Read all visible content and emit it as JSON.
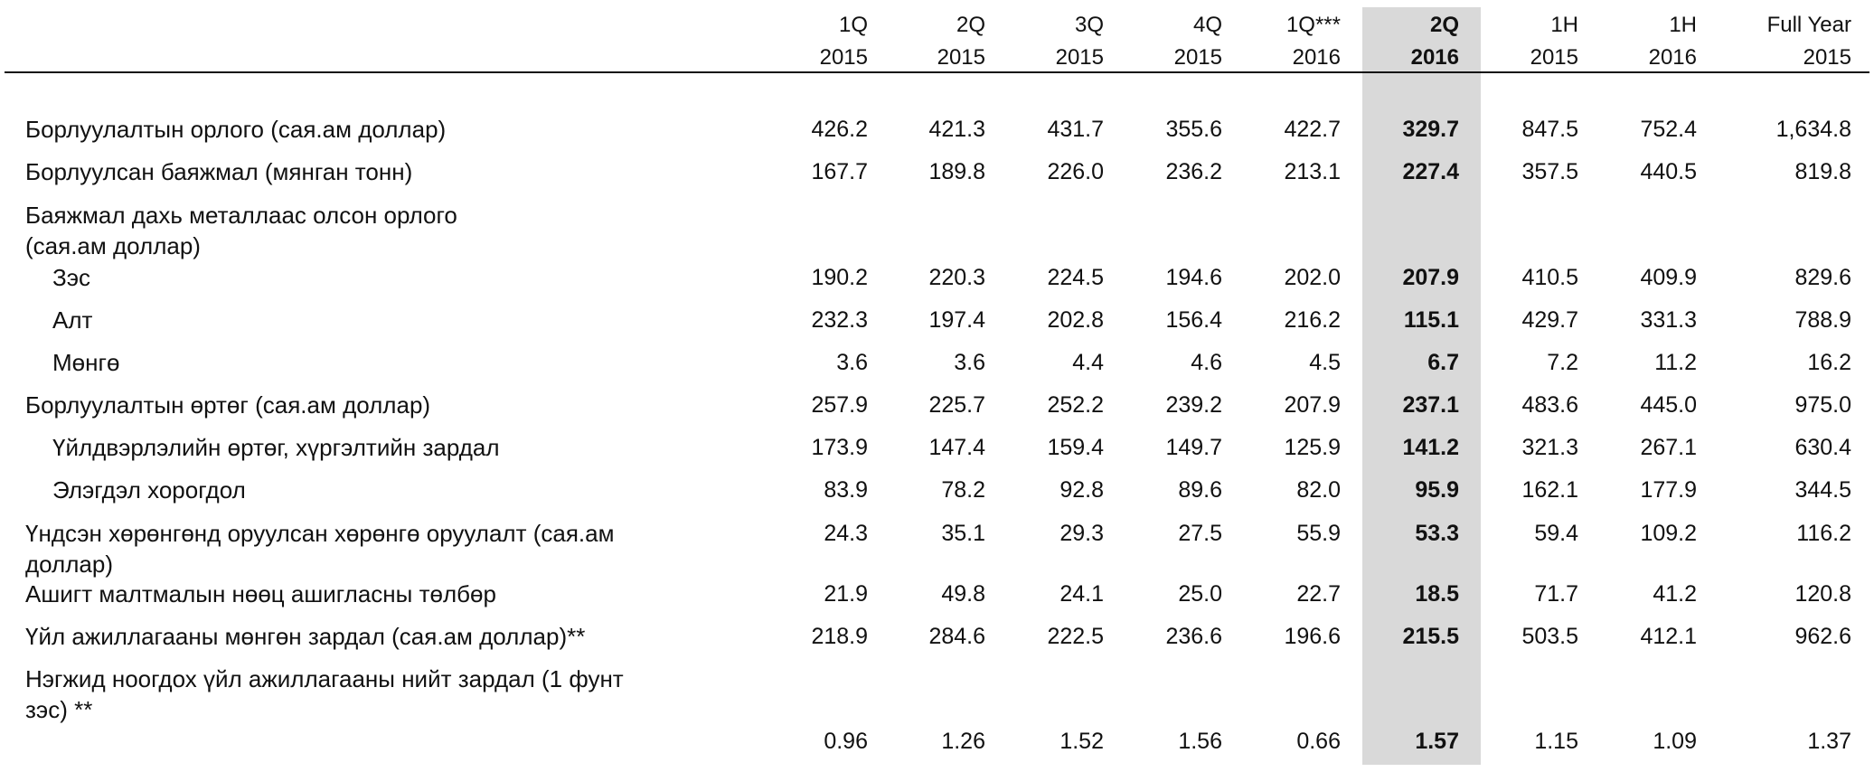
{
  "columns": [
    {
      "line1": "1Q",
      "line2": "2015"
    },
    {
      "line1": "2Q",
      "line2": "2015"
    },
    {
      "line1": "3Q",
      "line2": "2015"
    },
    {
      "line1": "4Q",
      "line2": "2015"
    },
    {
      "line1": "1Q***",
      "line2": "2016"
    },
    {
      "line1": "2Q",
      "line2": "2016"
    },
    {
      "line1": "1H",
      "line2": "2015"
    },
    {
      "line1": "1H",
      "line2": "2016"
    },
    {
      "line1": "Full Year",
      "line2": "2015"
    }
  ],
  "highlight_column": 5,
  "rows": [
    {
      "label": "Борлуулалтын орлого (сая.ам доллар)",
      "values": [
        "426.2",
        "421.3",
        "431.7",
        "355.6",
        "422.7",
        "329.7",
        "847.5",
        "752.4",
        "1,634.8"
      ]
    },
    {
      "label": "Борлуулсан баяжмал (мянган тонн)",
      "values": [
        "167.7",
        "189.8",
        "226.0",
        "236.2",
        "213.1",
        "227.4",
        "357.5",
        "440.5",
        "819.8"
      ]
    },
    {
      "label": "Баяжмал дахь металлаас олсон орлого",
      "label2": "(сая.ам доллар)",
      "values": []
    },
    {
      "label": "Зэс",
      "indent": true,
      "values": [
        "190.2",
        "220.3",
        "224.5",
        "194.6",
        "202.0",
        "207.9",
        "410.5",
        "409.9",
        "829.6"
      ]
    },
    {
      "label": "Алт",
      "indent": true,
      "values": [
        "232.3",
        "197.4",
        "202.8",
        "156.4",
        "216.2",
        "115.1",
        "429.7",
        "331.3",
        "788.9"
      ]
    },
    {
      "label": "Мөнгө",
      "indent": true,
      "values": [
        "3.6",
        "3.6",
        "4.4",
        "4.6",
        "4.5",
        "6.7",
        "7.2",
        "11.2",
        "16.2"
      ]
    },
    {
      "label": "Борлуулалтын өртөг (сая.ам доллар)",
      "values": [
        "257.9",
        "225.7",
        "252.2",
        "239.2",
        "207.9",
        "237.1",
        "483.6",
        "445.0",
        "975.0"
      ]
    },
    {
      "label": "Үйлдвэрлэлийн өртөг, хүргэлтийн  зардал",
      "indent": true,
      "values": [
        "173.9",
        "147.4",
        "159.4",
        "149.7",
        "125.9",
        "141.2",
        "321.3",
        "267.1",
        "630.4"
      ]
    },
    {
      "label": "Элэгдэл хорогдол",
      "indent": true,
      "values": [
        "83.9",
        "78.2",
        "92.8",
        "89.6",
        "82.0",
        "95.9",
        "162.1",
        "177.9",
        "344.5"
      ]
    },
    {
      "label": "Үндсэн хөрөнгөнд оруулсан хөрөнгө оруулалт (сая.ам",
      "label2": "доллар)",
      "values": [
        "24.3",
        "35.1",
        "29.3",
        "27.5",
        "55.9",
        "53.3",
        "59.4",
        "109.2",
        "116.2"
      ]
    },
    {
      "label": "Ашигт малтмалын нөөц ашигласны төлбөр",
      "values": [
        "21.9",
        "49.8",
        "24.1",
        "25.0",
        "22.7",
        "18.5",
        "71.7",
        "41.2",
        "120.8"
      ]
    },
    {
      "label": "Үйл ажиллагааны мөнгөн зардал (сая.ам доллар)**",
      "values": [
        "218.9",
        "284.6",
        "222.5",
        "236.6",
        "196.6",
        "215.5",
        "503.5",
        "412.1",
        "962.6"
      ]
    },
    {
      "label": "Нэгжид ноогдох үйл ажиллагааны нийт зардал (1 фунт",
      "label2": "зэс) **",
      "values": []
    },
    {
      "label": "",
      "values": [
        "0.96",
        "1.26",
        "1.52",
        "1.56",
        "0.66",
        "1.57",
        "1.15",
        "1.09",
        "1.37"
      ]
    }
  ]
}
